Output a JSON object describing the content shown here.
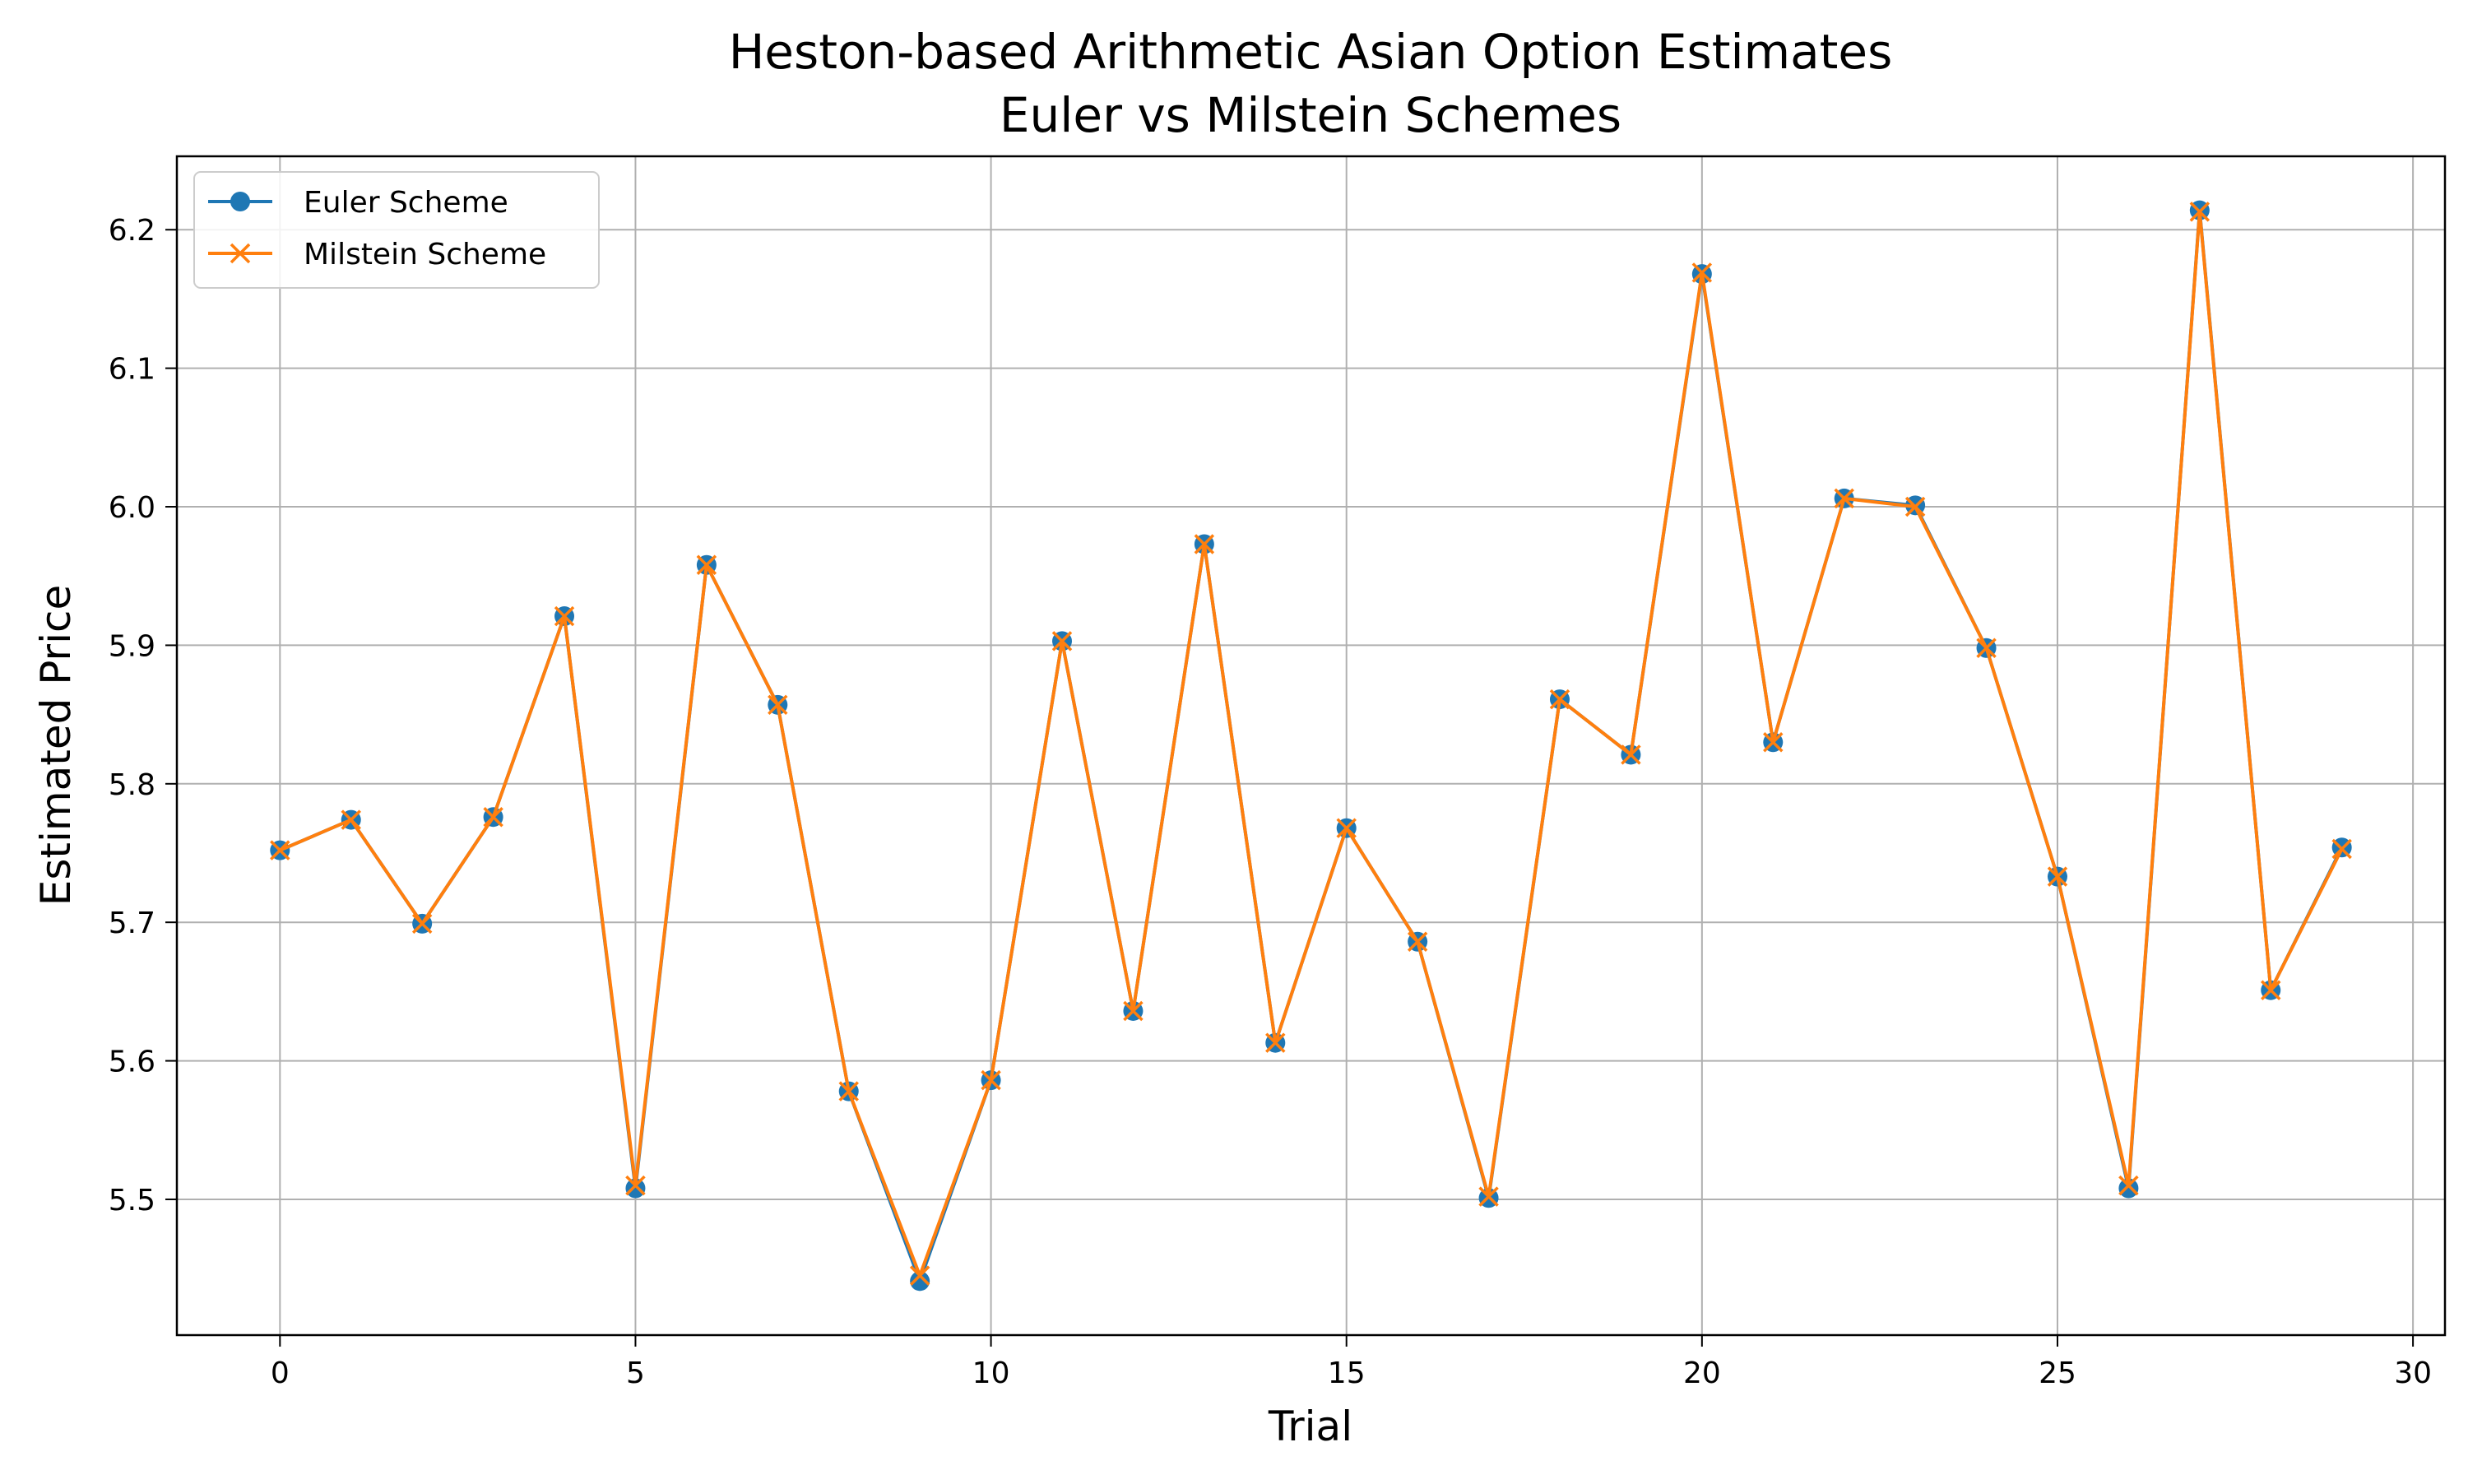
{
  "chart_data": {
    "type": "line",
    "title": "Heston-based Arithmetic Asian Option Estimates",
    "subtitle": "Euler vs Milstein Schemes",
    "xlabel": "Trial",
    "ylabel": "Estimated Price",
    "xlim": [
      -1.45,
      30.45
    ],
    "ylim": [
      5.402,
      6.253
    ],
    "x_ticks": [
      0,
      5,
      10,
      15,
      20,
      25,
      30
    ],
    "y_ticks": [
      5.5,
      5.6,
      5.7,
      5.8,
      5.9,
      6.0,
      6.1,
      6.2
    ],
    "grid": true,
    "legend_position": "top-left",
    "x": [
      0,
      1,
      2,
      3,
      4,
      5,
      6,
      7,
      8,
      9,
      10,
      11,
      12,
      13,
      14,
      15,
      16,
      17,
      18,
      19,
      20,
      21,
      22,
      23,
      24,
      25,
      26,
      27,
      28,
      29
    ],
    "series": [
      {
        "name": "Euler Scheme",
        "color": "#1f77b4",
        "marker": "circle",
        "values": [
          5.752,
          5.774,
          5.699,
          5.776,
          5.921,
          5.508,
          5.958,
          5.857,
          5.578,
          5.441,
          5.586,
          5.903,
          5.636,
          5.973,
          5.613,
          5.768,
          5.686,
          5.501,
          5.861,
          5.821,
          6.168,
          5.83,
          6.006,
          6.001,
          5.898,
          5.733,
          5.508,
          6.214,
          5.651,
          5.754
        ]
      },
      {
        "name": "Milstein Scheme",
        "color": "#ff7f0e",
        "marker": "x",
        "values": [
          5.752,
          5.774,
          5.699,
          5.776,
          5.921,
          5.51,
          5.958,
          5.857,
          5.578,
          5.445,
          5.586,
          5.903,
          5.636,
          5.973,
          5.613,
          5.768,
          5.686,
          5.502,
          5.861,
          5.821,
          6.169,
          5.83,
          6.006,
          6.0,
          5.898,
          5.733,
          5.51,
          6.213,
          5.651,
          5.753
        ]
      }
    ]
  }
}
